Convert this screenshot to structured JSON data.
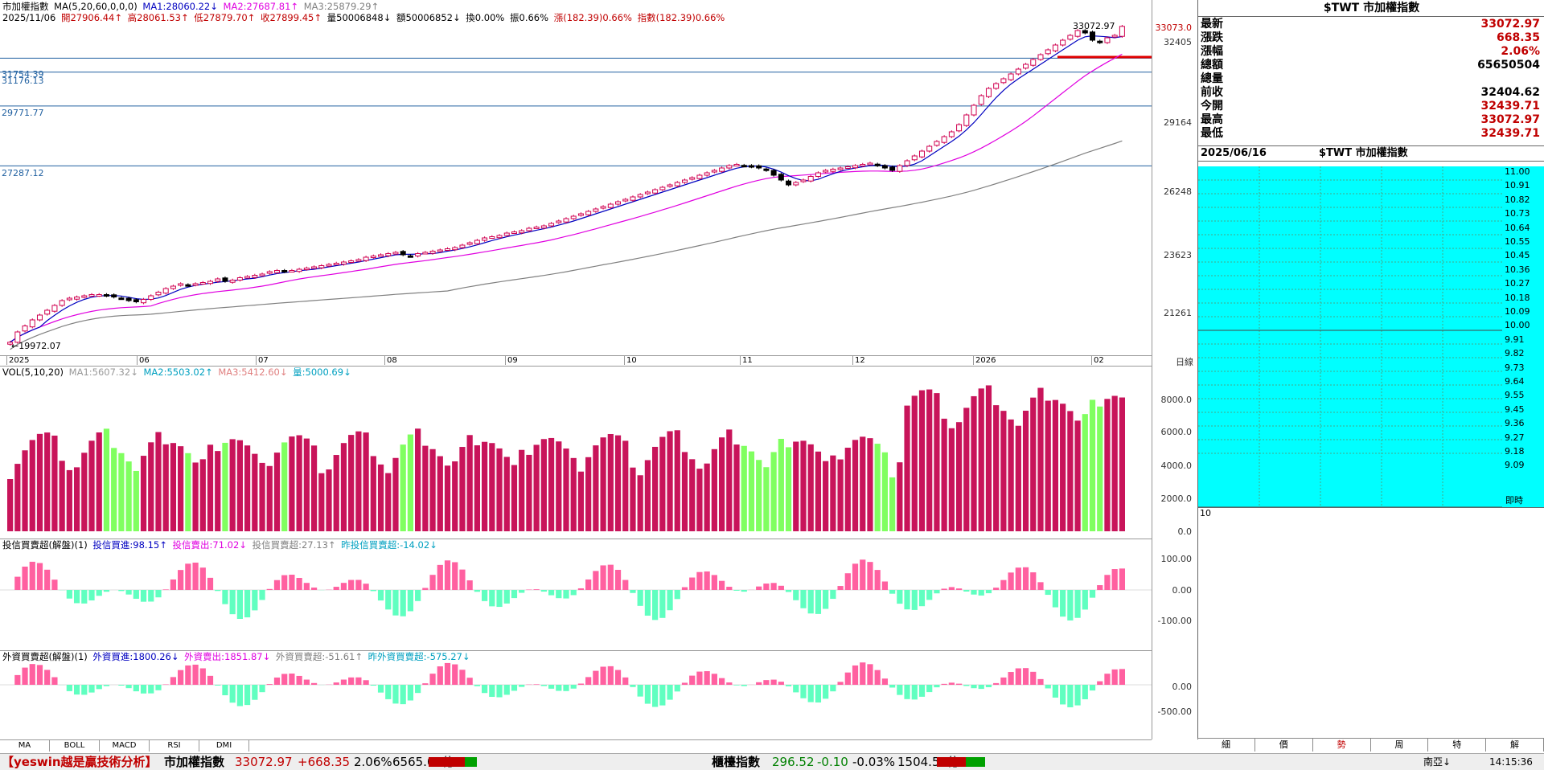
{
  "colors": {
    "up": "#d00050",
    "down": "#000000",
    "ma5": "#0000c0",
    "ma20": "#e000e0",
    "ma60": "#808080",
    "vol_up": "#c8145a",
    "vol_down": "#80ff60",
    "inst_pos": "#ff60a0",
    "inst_neg": "#60ffc0",
    "cyan": "#00ffff",
    "hline": "#2060a0"
  },
  "chart": {
    "title": "市加權指數",
    "ma_params": "MA(5,20,60,0,0,0)",
    "ma1": "MA1:28060.22↓",
    "ma2": "MA2:27687.81↑",
    "ma3": "MA3:25879.29↑",
    "date": "2025/11/06",
    "open": "開27906.44↑",
    "high": "高28061.53↑",
    "low": "低27879.70↑",
    "close": "收27899.45↑",
    "vol": "量50006848↓",
    "amount": "額50006852↓",
    "turnover": "換0.00%",
    "swing": "振0.66%",
    "change": "漲(182.39)0.66%",
    "index_chg": "指數(182.39)0.66%",
    "peak_label": "33072.97",
    "low_label": "←19972.07",
    "right_top": "33073.0",
    "hlines": [
      "31754.39",
      "31176.13",
      "29771.77",
      "27287.12"
    ],
    "y_ticks": [
      "32405",
      "29164",
      "26248",
      "23623",
      "21261"
    ],
    "months": [
      "2025",
      "06",
      "07",
      "08",
      "09",
      "10",
      "11",
      "12",
      "2026",
      "02"
    ],
    "axis_unit": "日線"
  },
  "chart_data": {
    "type": "candlestick",
    "title": "市加權指數",
    "ylim": [
      19500,
      33500
    ],
    "closes": [
      19972,
      20400,
      20650,
      20900,
      21100,
      21300,
      21500,
      21700,
      21800,
      21850,
      21900,
      21950,
      21950,
      21900,
      21850,
      21800,
      21700,
      21650,
      21750,
      21900,
      22050,
      22200,
      22300,
      22400,
      22350,
      22400,
      22450,
      22500,
      22600,
      22500,
      22550,
      22650,
      22700,
      22750,
      22800,
      22900,
      22950,
      22900,
      22950,
      23000,
      23050,
      23100,
      23150,
      23200,
      23250,
      23300,
      23350,
      23400,
      23500,
      23550,
      23600,
      23650,
      23700,
      23600,
      23550,
      23650,
      23700,
      23750,
      23800,
      23850,
      23900,
      24000,
      24100,
      24200,
      24300,
      24350,
      24400,
      24500,
      24550,
      24600,
      24700,
      24750,
      24800,
      24900,
      25000,
      25100,
      25200,
      25300,
      25400,
      25500,
      25600,
      25700,
      25800,
      25900,
      26000,
      26100,
      26200,
      26300,
      26400,
      26500,
      26600,
      26700,
      26800,
      26900,
      27000,
      27100,
      27200,
      27300,
      27350,
      27300,
      27250,
      27200,
      27100,
      26900,
      26700,
      26500,
      26600,
      26700,
      26850,
      27000,
      27100,
      27150,
      27200,
      27250,
      27300,
      27350,
      27400,
      27300,
      27200,
      27100,
      27300,
      27500,
      27700,
      27900,
      28100,
      28300,
      28500,
      28700,
      29000,
      29400,
      29800,
      30200,
      30500,
      30700,
      30900,
      31100,
      31300,
      31500,
      31700,
      31900,
      32100,
      32300,
      32500,
      32700,
      32900,
      32800,
      32500,
      32400,
      32600,
      32700,
      33073
    ],
    "ma20_note": "pink line",
    "ma60_note": "gray line"
  },
  "vol": {
    "label": "VOL(5,10,20)",
    "ma1": "MA1:5607.32↓",
    "ma2": "MA2:5503.02↑",
    "ma3": "MA3:5412.60↓",
    "vol": "量:5000.69↓",
    "ticks": [
      "8000.0",
      "6000.0",
      "4000.0",
      "2000.0",
      "0.0"
    ]
  },
  "inst": {
    "label": "投信買賣超(解盤)(1)",
    "buy": "投信買進:98.15↑",
    "sell": "投信賣出:71.02↓",
    "net": "投信買賣超:27.13↑",
    "prev": "昨投信買賣超:-14.02↓",
    "ticks": [
      "100.00",
      "0.00",
      "-100.00"
    ]
  },
  "foreign": {
    "label": "外資買賣超(解盤)(1)",
    "buy": "外資買進:1800.26↓",
    "sell": "外資賣出:1851.87↓",
    "net": "外資買賣超:-51.61↑",
    "prev": "昨外資買賣超:-575.27↓",
    "ticks": [
      "0.00",
      "-500.00"
    ]
  },
  "bottom_tabs": [
    "MA",
    "BOLL",
    "MACD",
    "RSI",
    "DMI"
  ],
  "quote": {
    "header": "$TWT 市加權指數",
    "rows": [
      {
        "k": "最新",
        "v": "33072.97",
        "c": "#c00000"
      },
      {
        "k": "漲跌",
        "v": "668.35",
        "c": "#c00000"
      },
      {
        "k": "漲幅",
        "v": "2.06%",
        "c": "#c00000"
      },
      {
        "k": "總額",
        "v": "65650504",
        "c": "#000000"
      },
      {
        "k": "總量",
        "v": "",
        "c": "#000000"
      },
      {
        "k": "前收",
        "v": "32404.62",
        "c": "#000000"
      },
      {
        "k": "今開",
        "v": "32439.71",
        "c": "#c00000"
      },
      {
        "k": "最高",
        "v": "33072.97",
        "c": "#c00000"
      },
      {
        "k": "最低",
        "v": "32439.71",
        "c": "#c00000"
      }
    ]
  },
  "intraday": {
    "date": "2025/06/16",
    "title": "$TWT 市加權指數",
    "ticks": [
      "11.00",
      "10.91",
      "10.82",
      "10.73",
      "10.64",
      "10.55",
      "10.45",
      "10.36",
      "10.27",
      "10.18",
      "10.09",
      "10.00",
      "9.91",
      "9.82",
      "9.73",
      "9.64",
      "9.55",
      "9.45",
      "9.36",
      "9.27",
      "9.18",
      "9.09"
    ],
    "vol_tick": "10",
    "footer": "即時"
  },
  "right_tabs": [
    "細",
    "價",
    "勢",
    "周",
    "特",
    "解"
  ],
  "status": {
    "brand": "【yeswin越是贏技術分析】",
    "idx1_name": "市加權指數",
    "idx1_val": "33072.97",
    "idx1_chg": "+668.35",
    "idx1_pct": "2.06%",
    "idx1_amt": "6565.05億",
    "idx2_name": "櫃檯指數",
    "idx2_val": "296.52",
    "idx2_chg": "-0.10",
    "idx2_pct": "-0.03%",
    "idx2_amt": "1504.50億",
    "region": "南亞↓",
    "time": "14:15:36"
  }
}
